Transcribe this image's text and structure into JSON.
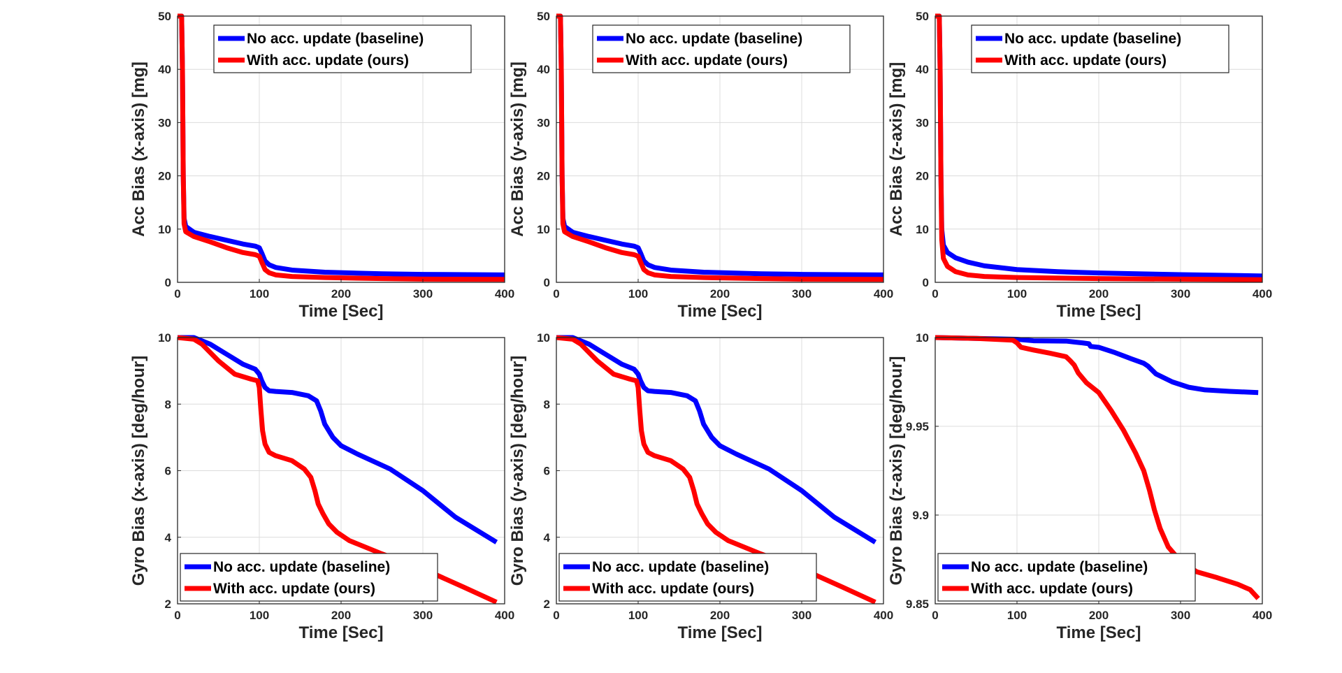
{
  "legend_labels": [
    "No acc. update (baseline)",
    "With acc. update (ours)"
  ],
  "colors": {
    "baseline": "#0000ff",
    "ours": "#ff0000",
    "axis": "#262626",
    "grid": "#dcdcdc"
  },
  "chart_data": [
    {
      "id": "acc-x",
      "type": "line",
      "xlabel": "Time [Sec]",
      "ylabel": "Acc Bias (x-axis) [mg]",
      "xlim": [
        0,
        400
      ],
      "ylim": [
        0,
        50
      ],
      "xticks": [
        0,
        100,
        200,
        300,
        400
      ],
      "yticks": [
        0,
        10,
        20,
        30,
        40,
        50
      ],
      "ytick_labels": [
        "0",
        "10",
        "20",
        "30",
        "40",
        "50"
      ],
      "grid": true,
      "legend": "top-right",
      "series": [
        {
          "name": "No acc. update (baseline)",
          "color": "#0000ff",
          "x": [
            0,
            5,
            6,
            7,
            8,
            10,
            20,
            40,
            60,
            80,
            95,
            100,
            103,
            107,
            112,
            120,
            140,
            180,
            250,
            300,
            400
          ],
          "y": [
            50,
            50,
            40,
            20,
            12,
            10.5,
            9.4,
            8.6,
            7.9,
            7.2,
            6.8,
            6.5,
            5.5,
            4.0,
            3.3,
            2.8,
            2.3,
            1.9,
            1.6,
            1.5,
            1.4
          ]
        },
        {
          "name": "With acc. update (ours)",
          "color": "#ff0000",
          "x": [
            0,
            5,
            6,
            7,
            8,
            10,
            20,
            40,
            60,
            80,
            95,
            100,
            103,
            107,
            112,
            120,
            140,
            180,
            250,
            300,
            400
          ],
          "y": [
            50,
            50,
            40,
            20,
            11,
            9.5,
            8.6,
            7.6,
            6.5,
            5.6,
            5.2,
            4.9,
            3.8,
            2.4,
            1.8,
            1.4,
            1.1,
            0.9,
            0.7,
            0.6,
            0.55
          ]
        }
      ]
    },
    {
      "id": "acc-y",
      "type": "line",
      "xlabel": "Time [Sec]",
      "ylabel": "Acc Bias (y-axis) [mg]",
      "xlim": [
        0,
        400
      ],
      "ylim": [
        0,
        50
      ],
      "xticks": [
        0,
        100,
        200,
        300,
        400
      ],
      "yticks": [
        0,
        10,
        20,
        30,
        40,
        50
      ],
      "ytick_labels": [
        "0",
        "10",
        "20",
        "30",
        "40",
        "50"
      ],
      "grid": true,
      "legend": "top-right",
      "series": [
        {
          "name": "No acc. update (baseline)",
          "color": "#0000ff",
          "x": [
            0,
            5,
            6,
            7,
            8,
            10,
            20,
            40,
            60,
            80,
            95,
            100,
            103,
            107,
            112,
            120,
            140,
            180,
            250,
            300,
            400
          ],
          "y": [
            50,
            50,
            40,
            20,
            12,
            10.5,
            9.4,
            8.6,
            7.9,
            7.2,
            6.8,
            6.5,
            5.5,
            4.0,
            3.3,
            2.8,
            2.3,
            1.9,
            1.6,
            1.5,
            1.4
          ]
        },
        {
          "name": "With acc. update (ours)",
          "color": "#ff0000",
          "x": [
            0,
            5,
            6,
            7,
            8,
            10,
            20,
            40,
            60,
            80,
            95,
            100,
            103,
            107,
            112,
            120,
            140,
            180,
            250,
            300,
            400
          ],
          "y": [
            50,
            50,
            40,
            20,
            11,
            9.5,
            8.6,
            7.6,
            6.5,
            5.6,
            5.2,
            4.9,
            3.8,
            2.4,
            1.8,
            1.4,
            1.1,
            0.9,
            0.7,
            0.6,
            0.55
          ]
        }
      ]
    },
    {
      "id": "acc-z",
      "type": "line",
      "xlabel": "Time [Sec]",
      "ylabel": "Acc Bias (z-axis) [mg]",
      "xlim": [
        0,
        400
      ],
      "ylim": [
        0,
        50
      ],
      "xticks": [
        0,
        100,
        200,
        300,
        400
      ],
      "yticks": [
        0,
        10,
        20,
        30,
        40,
        50
      ],
      "ytick_labels": [
        "0",
        "10",
        "20",
        "30",
        "40",
        "50"
      ],
      "grid": true,
      "legend": "top-right",
      "series": [
        {
          "name": "No acc. update (baseline)",
          "color": "#0000ff",
          "x": [
            0,
            5,
            6,
            7,
            8,
            10,
            15,
            25,
            40,
            60,
            100,
            150,
            200,
            300,
            400
          ],
          "y": [
            50,
            50,
            40,
            20,
            10,
            7,
            5.6,
            4.6,
            3.8,
            3.1,
            2.4,
            2.0,
            1.75,
            1.45,
            1.2
          ]
        },
        {
          "name": "With acc. update (ours)",
          "color": "#ff0000",
          "x": [
            0,
            5,
            6,
            7,
            8,
            10,
            15,
            25,
            40,
            60,
            100,
            150,
            200,
            300,
            400
          ],
          "y": [
            50,
            50,
            40,
            20,
            8,
            4.5,
            3.0,
            2.0,
            1.4,
            1.1,
            0.9,
            0.8,
            0.7,
            0.6,
            0.5
          ]
        }
      ]
    },
    {
      "id": "gyro-x",
      "type": "line",
      "xlabel": "Time [Sec]",
      "ylabel": "Gyro Bias (x-axis) [deg/hour]",
      "xlim": [
        0,
        400
      ],
      "ylim": [
        2,
        10
      ],
      "xticks": [
        0,
        100,
        200,
        300,
        400
      ],
      "yticks": [
        2,
        4,
        6,
        8,
        10
      ],
      "ytick_labels": [
        "2",
        "4",
        "6",
        "8",
        "10"
      ],
      "grid": true,
      "legend": "bottom-left",
      "series": [
        {
          "name": "No acc. update (baseline)",
          "color": "#0000ff",
          "x": [
            0,
            20,
            40,
            60,
            80,
            95,
            100,
            103,
            107,
            112,
            120,
            140,
            160,
            170,
            175,
            180,
            190,
            200,
            220,
            260,
            300,
            340,
            390
          ],
          "y": [
            10,
            10,
            9.8,
            9.5,
            9.2,
            9.05,
            8.9,
            8.7,
            8.5,
            8.4,
            8.38,
            8.35,
            8.25,
            8.1,
            7.8,
            7.4,
            7.0,
            6.75,
            6.5,
            6.05,
            5.4,
            4.6,
            3.85
          ]
        },
        {
          "name": "With acc. update (ours)",
          "color": "#ff0000",
          "x": [
            0,
            20,
            30,
            50,
            70,
            90,
            98,
            100,
            102,
            104,
            107,
            112,
            120,
            140,
            155,
            163,
            168,
            172,
            178,
            185,
            195,
            210,
            250,
            300,
            350,
            390
          ],
          "y": [
            10,
            9.95,
            9.8,
            9.3,
            8.9,
            8.75,
            8.7,
            8.5,
            7.8,
            7.2,
            6.8,
            6.55,
            6.45,
            6.3,
            6.05,
            5.8,
            5.4,
            5.0,
            4.7,
            4.4,
            4.15,
            3.9,
            3.5,
            3.05,
            2.5,
            2.05
          ]
        }
      ]
    },
    {
      "id": "gyro-y",
      "type": "line",
      "xlabel": "Time [Sec]",
      "ylabel": "Gyro Bias (y-axis) [deg/hour]",
      "xlim": [
        0,
        400
      ],
      "ylim": [
        2,
        10
      ],
      "xticks": [
        0,
        100,
        200,
        300,
        400
      ],
      "yticks": [
        2,
        4,
        6,
        8,
        10
      ],
      "ytick_labels": [
        "2",
        "4",
        "6",
        "8",
        "10"
      ],
      "grid": true,
      "legend": "bottom-left",
      "series": [
        {
          "name": "No acc. update (baseline)",
          "color": "#0000ff",
          "x": [
            0,
            20,
            40,
            60,
            80,
            95,
            100,
            103,
            107,
            112,
            120,
            140,
            160,
            170,
            175,
            180,
            190,
            200,
            220,
            260,
            300,
            340,
            390
          ],
          "y": [
            10,
            10,
            9.8,
            9.5,
            9.2,
            9.05,
            8.9,
            8.7,
            8.5,
            8.4,
            8.38,
            8.35,
            8.25,
            8.1,
            7.8,
            7.4,
            7.0,
            6.75,
            6.5,
            6.05,
            5.4,
            4.6,
            3.85
          ]
        },
        {
          "name": "With acc. update (ours)",
          "color": "#ff0000",
          "x": [
            0,
            20,
            30,
            50,
            70,
            90,
            98,
            100,
            102,
            104,
            107,
            112,
            120,
            140,
            155,
            163,
            168,
            172,
            178,
            185,
            195,
            210,
            250,
            300,
            350,
            390
          ],
          "y": [
            10,
            9.95,
            9.8,
            9.3,
            8.9,
            8.75,
            8.7,
            8.5,
            7.8,
            7.2,
            6.8,
            6.55,
            6.45,
            6.3,
            6.05,
            5.8,
            5.4,
            5.0,
            4.7,
            4.4,
            4.15,
            3.9,
            3.5,
            3.05,
            2.5,
            2.05
          ]
        }
      ]
    },
    {
      "id": "gyro-z",
      "type": "line",
      "xlabel": "Time [Sec]",
      "ylabel": "Gyro Bias (z-axis) [deg/hour]",
      "xlim": [
        0,
        400
      ],
      "ylim": [
        9.85,
        10
      ],
      "xticks": [
        0,
        100,
        200,
        300,
        400
      ],
      "yticks": [
        9.85,
        9.9,
        9.95,
        10
      ],
      "ytick_labels": [
        "9.85",
        "9.9",
        "9.95",
        "10"
      ],
      "grid": true,
      "legend": "bottom-left",
      "series": [
        {
          "name": "No acc. update (baseline)",
          "color": "#0000ff",
          "x": [
            0,
            50,
            100,
            120,
            160,
            170,
            180,
            188,
            190,
            200,
            220,
            240,
            255,
            260,
            270,
            290,
            310,
            330,
            360,
            395
          ],
          "y": [
            10,
            9.9995,
            9.999,
            9.9982,
            9.998,
            9.9975,
            9.997,
            9.9965,
            9.995,
            9.9945,
            9.9915,
            9.988,
            9.9855,
            9.984,
            9.9795,
            9.975,
            9.972,
            9.9705,
            9.9697,
            9.969
          ]
        },
        {
          "name": "With acc. update (ours)",
          "color": "#ff0000",
          "x": [
            0,
            50,
            95,
            100,
            105,
            120,
            140,
            160,
            165,
            170,
            175,
            185,
            200,
            215,
            230,
            245,
            255,
            262,
            268,
            275,
            285,
            300,
            320,
            345,
            370,
            385,
            395
          ],
          "y": [
            10,
            9.9995,
            9.9985,
            9.997,
            9.9945,
            9.993,
            9.9912,
            9.9892,
            9.987,
            9.9845,
            9.98,
            9.9745,
            9.969,
            9.959,
            9.948,
            9.935,
            9.925,
            9.914,
            9.903,
            9.8925,
            9.882,
            9.874,
            9.868,
            9.8647,
            9.861,
            9.858,
            9.853
          ]
        }
      ]
    }
  ]
}
